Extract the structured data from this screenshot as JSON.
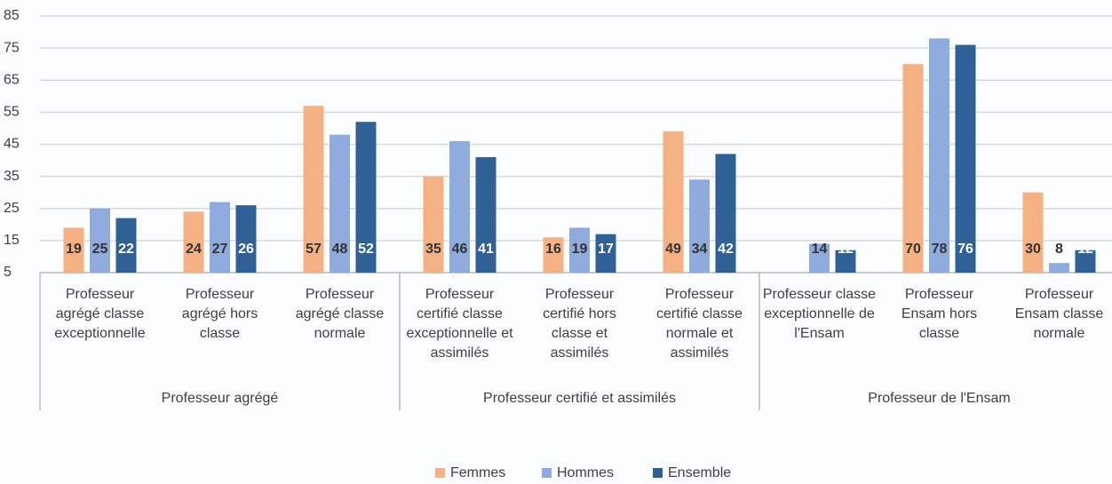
{
  "chart_data": {
    "type": "bar",
    "groups": [
      {
        "name": "Professeur agrégé",
        "categories": [
          "Professeur agrégé classe exceptionnelle",
          "Professeur agrégé hors classe",
          "Professeur agrégé classe normale"
        ]
      },
      {
        "name": "Professeur certifié et assimilés",
        "categories": [
          "Professeur certifié classe exceptionnelle et assimilés",
          "Professeur certifié hors classe et assimilés",
          "Professeur certifié classe normale et assimilés"
        ]
      },
      {
        "name": "Professeur de l'Ensam",
        "categories": [
          "Professeur classe exceptionnelle de l'Ensam",
          "Professeur Ensam hors classe",
          "Professeur Ensam classe normale"
        ]
      }
    ],
    "series": [
      {
        "name": "Femmes",
        "color": "#f4b183",
        "label_color": "#333333",
        "values": [
          19,
          24,
          57,
          35,
          16,
          49,
          null,
          70,
          30
        ]
      },
      {
        "name": "Hommes",
        "color": "#8faadc",
        "label_color": "#333333",
        "values": [
          25,
          27,
          48,
          46,
          19,
          34,
          14,
          78,
          8
        ]
      },
      {
        "name": "Ensemble",
        "color": "#2f6196",
        "label_color": "#ffffff",
        "values": [
          22,
          26,
          52,
          41,
          17,
          42,
          12,
          76,
          12
        ]
      }
    ],
    "ylim": [
      5,
      85
    ],
    "yticks": [
      5,
      15,
      25,
      35,
      45,
      55,
      65,
      75,
      85
    ],
    "grid": true,
    "legend": "bottom"
  }
}
